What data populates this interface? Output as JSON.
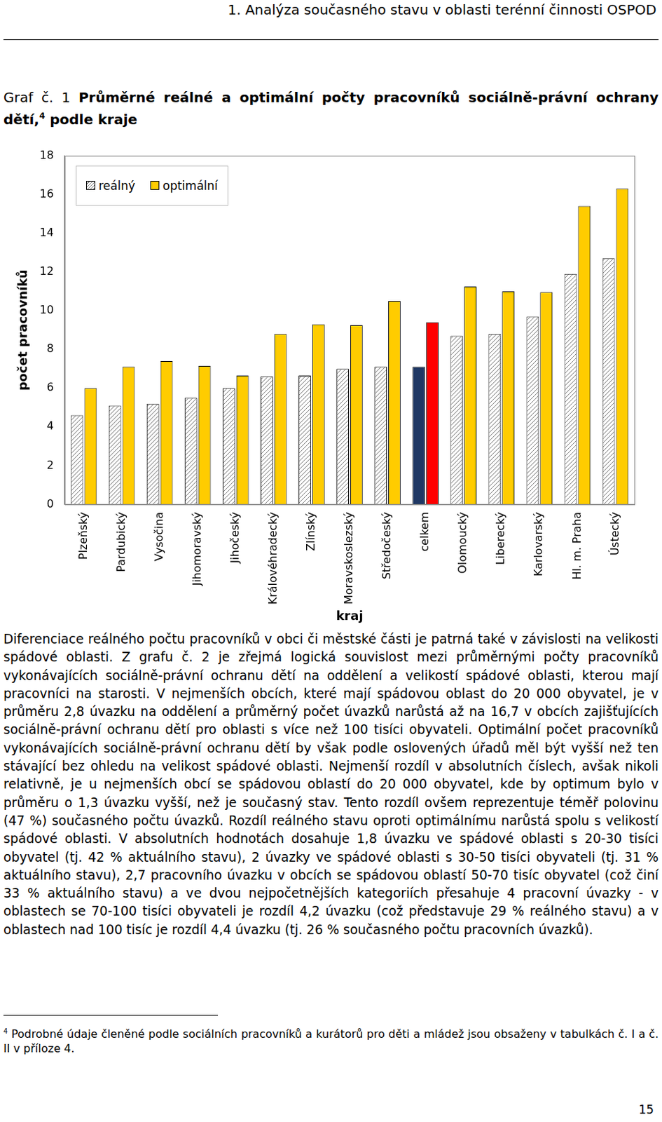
{
  "header": "1. Analýza současného stavu v oblasti terénní činnosti OSPOD",
  "caption": {
    "label": "Graf č. 1",
    "text": "Průměrné reálné a optimální počty pracovníků sociálně-právní ochrany dětí,",
    "footnote_ref": "4",
    "text_after": "podle kraje"
  },
  "chart_data": {
    "type": "bar",
    "x_label": "kraj",
    "y_label": "počet pracovníků",
    "categories": [
      "Plzeňský",
      "Pardubický",
      "Vysočina",
      "Jihomoravský",
      "Jihočeský",
      "Královéhradecký",
      "Zlínský",
      "Moravskoslezský",
      "Středočeský",
      "celkem",
      "Olomoucký",
      "Liberecký",
      "Karlovarský",
      "Hl. m. Praha",
      "Ústecký"
    ],
    "series": [
      {
        "name": "reálný",
        "color": "#808080",
        "colors": [
          "#808080",
          "#808080",
          "#808080",
          "#808080",
          "#808080",
          "#808080",
          "#808080",
          "#808080",
          "#808080",
          "#1f3864",
          "#808080",
          "#808080",
          "#808080",
          "#808080",
          "#808080"
        ],
        "values": [
          4.6,
          5.1,
          5.2,
          5.5,
          6.0,
          6.6,
          6.65,
          7.0,
          7.1,
          7.1,
          8.7,
          8.8,
          9.7,
          11.9,
          12.7
        ]
      },
      {
        "name": "optimální",
        "color": "#ffcc00",
        "colors": [
          "#ffcc00",
          "#ffcc00",
          "#ffcc00",
          "#ffcc00",
          "#ffcc00",
          "#ffcc00",
          "#ffcc00",
          "#ffcc00",
          "#ffcc00",
          "#ff0000",
          "#ffcc00",
          "#ffcc00",
          "#ffcc00",
          "#ffcc00",
          "#ffcc00"
        ],
        "values": [
          6.0,
          7.1,
          7.4,
          7.15,
          6.65,
          8.8,
          9.3,
          9.25,
          10.5,
          9.4,
          11.25,
          11.0,
          10.95,
          15.4,
          16.3
        ]
      }
    ],
    "ylim": [
      0,
      18
    ],
    "yticks": [
      0,
      2,
      4,
      6,
      8,
      10,
      12,
      14,
      16,
      18
    ],
    "grid": false,
    "legend": "upper left"
  },
  "paragraph": "Diferenciace reálného počtu pracovníků v obci či městské části je patrná také v závislosti na velikosti spádové oblasti. Z grafu č. 2 je zřejmá logická souvislost mezi průměrnými počty pracovníků vykonávajících sociálně-právní ochranu dětí na oddělení a velikostí spádové oblasti, kterou mají pracovníci na starosti. V nejmenších obcích, které mají spádovou oblast do 20 000 obyvatel, je v průměru 2,8 úvazku na oddělení a průměrný počet úvazků narůstá až na 16,7 v obcích zajišťujících sociálně-právní ochranu dětí pro oblasti s více než 100 tisíci obyvateli. Optimální počet pracovníků vykonávajících sociálně-právní ochranu dětí by však podle oslovených úřadů měl být vyšší než ten stávající bez ohledu na velikost spádové oblasti. Nejmenší rozdíl v absolutních číslech, avšak nikoli relativně, je u nejmenších obcí se spádovou oblastí do 20 000 obyvatel, kde by optimum bylo v průměru o 1,3 úvazku vyšší, než je současný stav. Tento rozdíl ovšem reprezentuje téměř polovinu (47 %) současného počtu úvazků. Rozdíl reálného stavu oproti optimálnímu narůstá spolu s velikostí spádové oblasti. V absolutních hodnotách dosahuje 1,8 úvazku ve spádové oblasti s 20-30 tisíci obyvatel (tj. 42 % aktuálního stavu), 2 úvazky ve spádové oblasti s 30-50 tisíci obyvateli (tj. 31 % aktuálního stavu), 2,7 pracovního úvazku v obcích se spádovou oblastí 50-70 tisíc obyvatel (což činí 33 % aktuálního stavu) a ve dvou nejpočetnějších kategoriích přesahuje 4 pracovní úvazky - v oblastech se 70-100 tisíci obyvateli je rozdíl 4,2 úvazku (což představuje 29 % reálného stavu) a v oblastech nad 100 tisíc je rozdíl 4,4 úvazku (tj. 26 % současného počtu pracovních úvazků).",
  "footnote": {
    "mark": "4",
    "text": "Podrobné údaje členěné podle sociálních pracovníků a kurátorů pro děti a mládež jsou obsaženy v tabulkách č. I a č. II v příloze 4."
  },
  "page_number": "15"
}
